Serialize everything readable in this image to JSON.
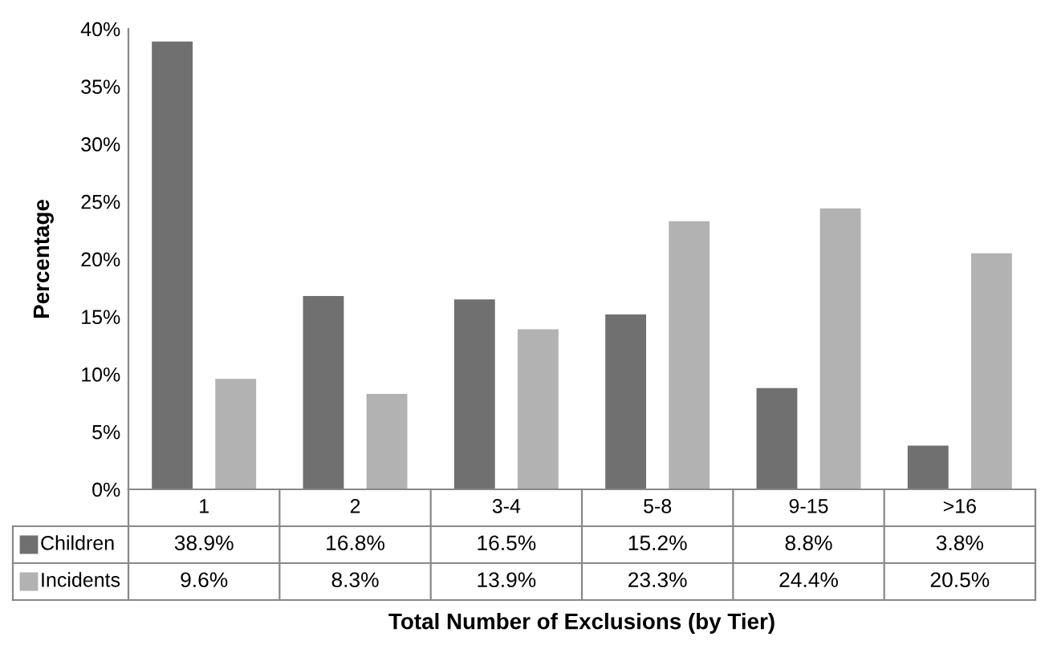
{
  "chart_data": {
    "type": "bar",
    "xlabel": "Total Number of Exclusions (by Tier)",
    "ylabel": "Percentage",
    "categories": [
      "1",
      "2",
      "3-4",
      "5-8",
      "9-15",
      ">16"
    ],
    "series": [
      {
        "name": "Children",
        "color": "#707070",
        "values": [
          38.9,
          16.8,
          16.5,
          15.2,
          8.8,
          3.8
        ],
        "value_labels": [
          "38.9%",
          "16.8%",
          "16.5%",
          "15.2%",
          "8.8%",
          "3.8%"
        ]
      },
      {
        "name": "Incidents",
        "color": "#b2b2b2",
        "values": [
          9.6,
          8.3,
          13.9,
          23.3,
          24.4,
          20.5
        ],
        "value_labels": [
          "9.6%",
          "8.3%",
          "13.9%",
          "23.3%",
          "24.4%",
          "20.5%"
        ]
      }
    ],
    "ylim": [
      0,
      40
    ],
    "yticks": [
      {
        "value": 0,
        "label": "0%"
      },
      {
        "value": 5,
        "label": "5%"
      },
      {
        "value": 10,
        "label": "10%"
      },
      {
        "value": 15,
        "label": "15%"
      },
      {
        "value": 20,
        "label": "20%"
      },
      {
        "value": 25,
        "label": "25%"
      },
      {
        "value": 30,
        "label": "30%"
      },
      {
        "value": 35,
        "label": "35%"
      },
      {
        "value": 40,
        "label": "40%"
      }
    ],
    "grid": false,
    "legend": "bottom"
  }
}
